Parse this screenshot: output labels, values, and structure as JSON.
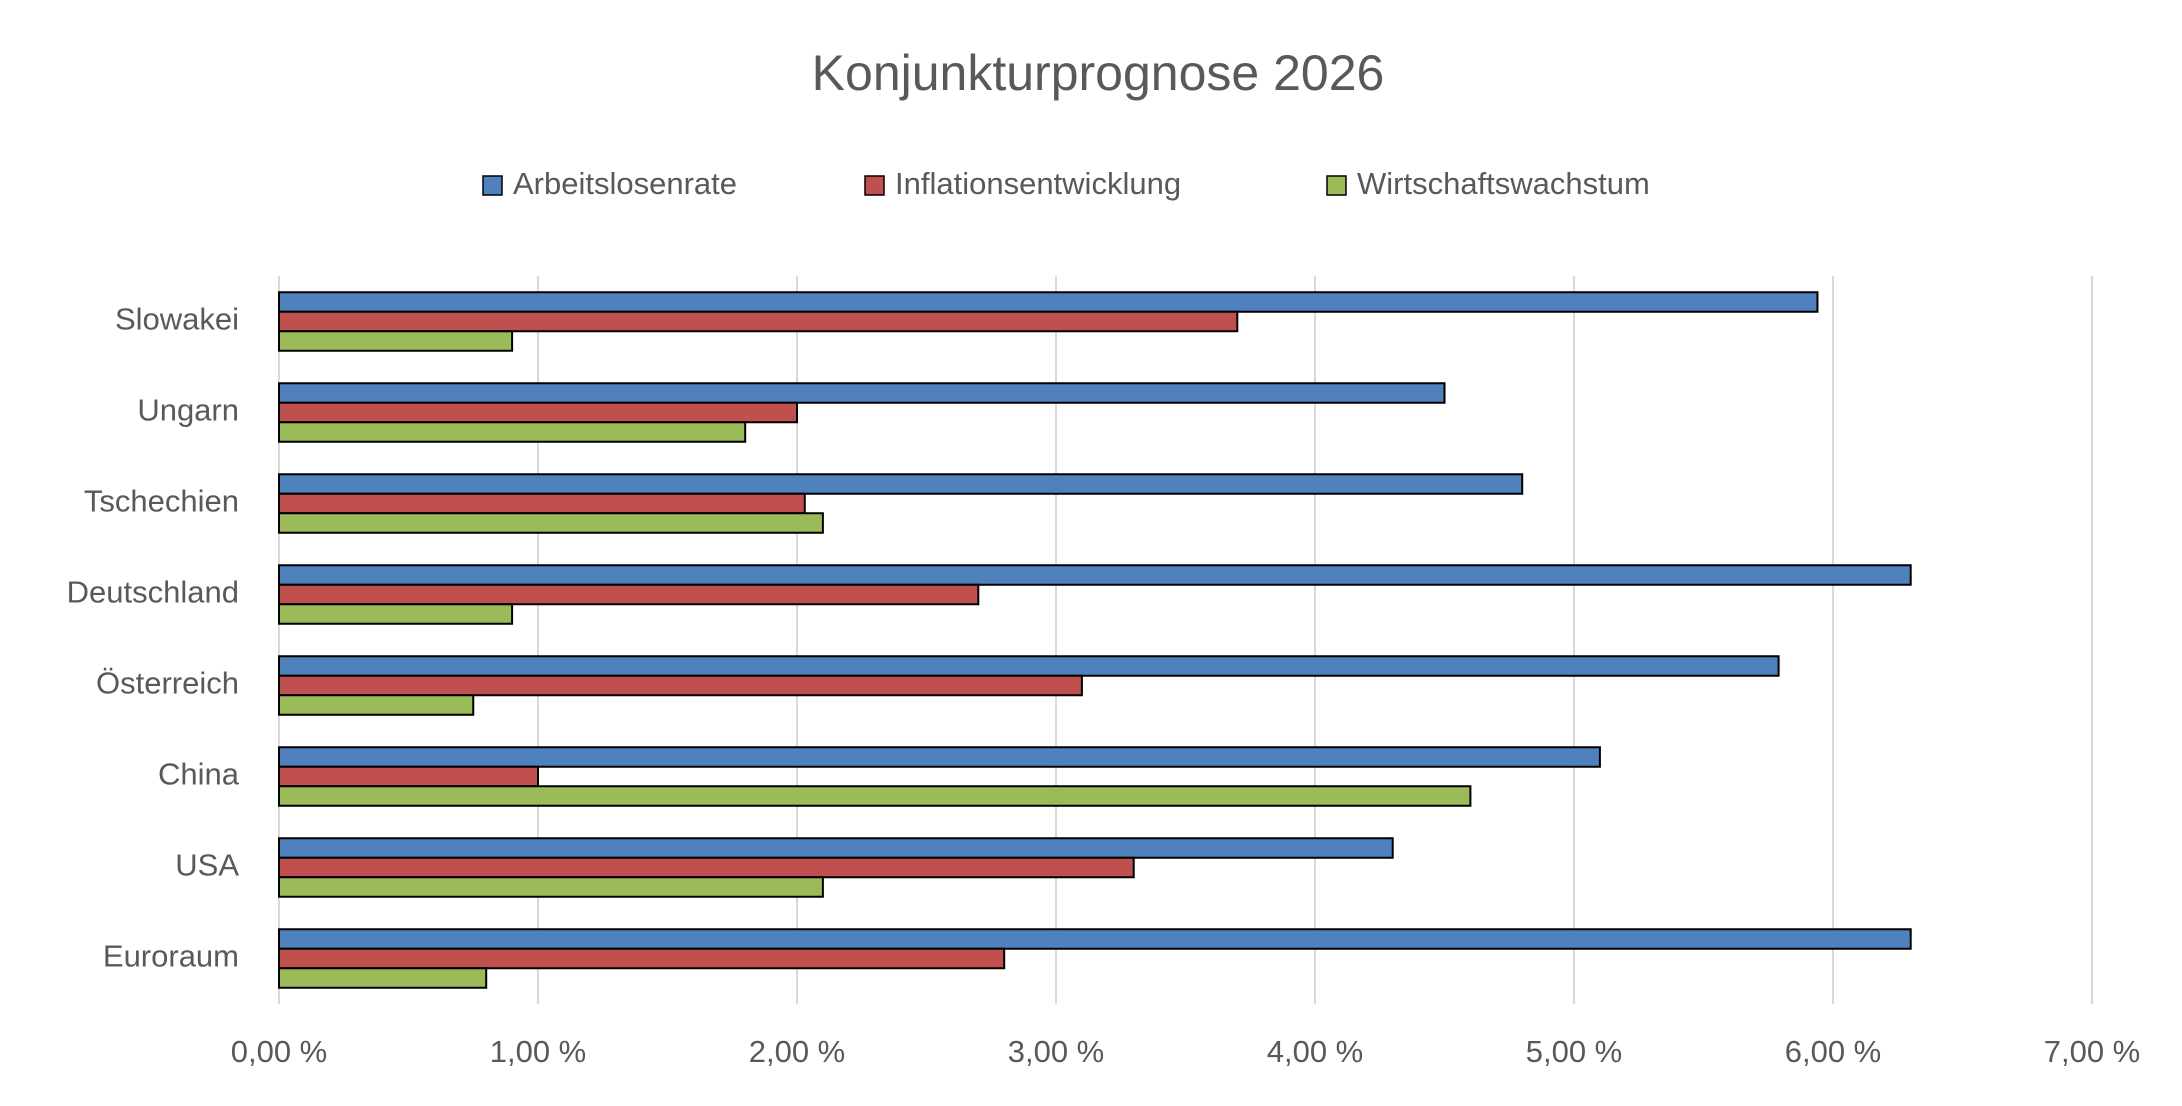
{
  "chart_data": {
    "type": "bar",
    "orientation": "horizontal",
    "title": "Konjunkturprognose 2026",
    "categories": [
      "Slowakei",
      "Ungarn",
      "Tschechien",
      "Deutschland",
      "Österreich",
      "China",
      "USA",
      "Euroraum"
    ],
    "series": [
      {
        "name": "Arbeitslosenrate",
        "color": "#4f81bd",
        "values": [
          5.94,
          4.5,
          4.8,
          6.3,
          5.79,
          5.1,
          4.3,
          6.3
        ]
      },
      {
        "name": "Inflationsentwicklung",
        "color": "#c0504d",
        "values": [
          3.7,
          2.0,
          2.03,
          2.7,
          3.1,
          1.0,
          3.3,
          2.8
        ]
      },
      {
        "name": "Wirtschaftswachstum",
        "color": "#9bbb59",
        "values": [
          0.9,
          1.8,
          2.1,
          0.9,
          0.75,
          4.6,
          2.1,
          0.8
        ]
      }
    ],
    "xlim": [
      0,
      7
    ],
    "xticks": [
      {
        "value": 0,
        "label": "0,00 %"
      },
      {
        "value": 1,
        "label": "1,00 %"
      },
      {
        "value": 2,
        "label": "2,00 %"
      },
      {
        "value": 3,
        "label": "3,00 %"
      },
      {
        "value": 4,
        "label": "4,00 %"
      },
      {
        "value": 5,
        "label": "5,00 %"
      },
      {
        "value": 6,
        "label": "6,00 %"
      },
      {
        "value": 7,
        "label": "7,00 %"
      }
    ],
    "grid": true,
    "legend": "top"
  }
}
